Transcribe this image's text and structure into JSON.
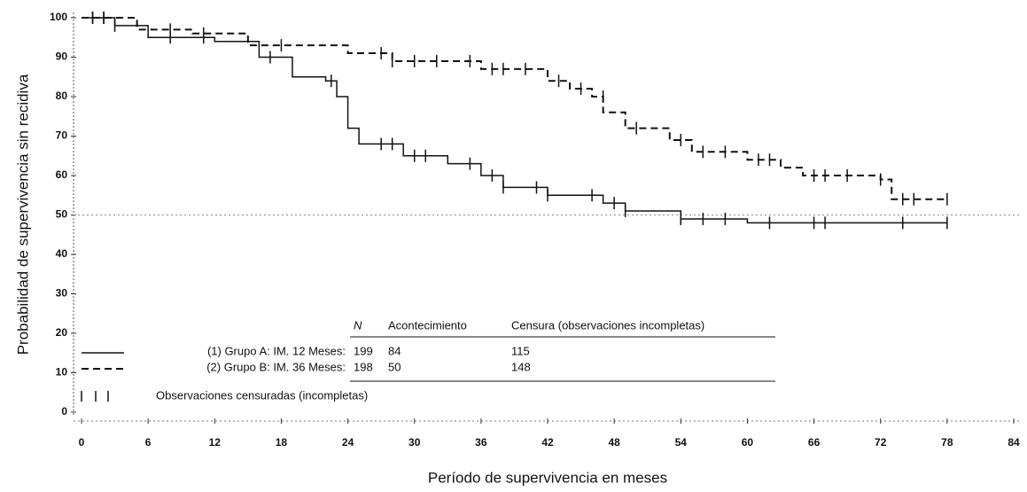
{
  "chart_data": {
    "type": "step",
    "ylabel": "Probabilidad de supervivencia sin recidiva",
    "xlabel": "Período de supervivencia en meses",
    "xlim": [
      0,
      84
    ],
    "xticks": [
      0,
      6,
      12,
      18,
      24,
      30,
      36,
      42,
      48,
      54,
      60,
      66,
      72,
      78,
      84
    ],
    "ylim": [
      0,
      100
    ],
    "yticks": [
      0,
      10,
      20,
      30,
      40,
      50,
      60,
      70,
      80,
      90,
      100
    ],
    "reference_line": 50,
    "series": [
      {
        "name": "(1) Grupo A:  IM. 12 Meses:",
        "color": "#111111",
        "dash": "solid",
        "x": [
          0,
          3,
          6,
          12,
          16,
          19,
          22,
          23,
          24,
          25,
          29,
          33,
          36,
          38,
          42,
          47,
          49,
          54,
          60,
          78
        ],
        "values": [
          100,
          98,
          95,
          94,
          90,
          85,
          84,
          80,
          72,
          68,
          65,
          63,
          60,
          57,
          55,
          53,
          51,
          49,
          48,
          48
        ],
        "censored": {
          "x": [
            1,
            2,
            3,
            8,
            11,
            17,
            22.5,
            27,
            28,
            30,
            31,
            35,
            37,
            38,
            41,
            42,
            46,
            48,
            49,
            54,
            56,
            58,
            62,
            66,
            67,
            74,
            78
          ],
          "y": [
            100,
            100,
            98,
            95,
            95,
            90,
            84,
            68,
            68,
            65,
            65,
            63,
            60,
            57,
            57,
            55,
            55,
            53,
            51,
            49,
            49,
            49,
            48,
            48,
            48,
            48,
            48
          ]
        }
      },
      {
        "name": "(2) Grupo B:  IM. 36 Meses:",
        "color": "#111111",
        "dash": "dashed",
        "x": [
          0,
          5,
          10,
          15,
          24,
          28,
          36,
          42,
          44,
          46,
          47,
          49,
          53,
          55,
          60,
          63,
          65,
          72,
          73,
          78
        ],
        "values": [
          100,
          97,
          96,
          93,
          91,
          89,
          87,
          84,
          82,
          80,
          76,
          72,
          69,
          66,
          64,
          62,
          60,
          59,
          54,
          54
        ],
        "censored": {
          "x": [
            1,
            2,
            8,
            11,
            18,
            27,
            28,
            30,
            32,
            35,
            37,
            38,
            40,
            43,
            45,
            47,
            50,
            54,
            56,
            58,
            61,
            62,
            66,
            67,
            69,
            72,
            74,
            75,
            78
          ],
          "y": [
            100,
            100,
            97,
            96,
            93,
            91,
            89,
            89,
            89,
            89,
            87,
            87,
            87,
            84,
            82,
            80,
            72,
            69,
            66,
            66,
            64,
            64,
            60,
            60,
            60,
            59,
            54,
            54,
            54
          ]
        }
      }
    ],
    "legend_table": {
      "header": [
        "N",
        "Acontecimiento",
        "Censura (observaciones incompletas)"
      ],
      "rows": [
        [
          "199",
          "84",
          "115"
        ],
        [
          "198",
          "50",
          "148"
        ]
      ],
      "censor_note": "Observaciones censuradas (incompletas)"
    }
  }
}
